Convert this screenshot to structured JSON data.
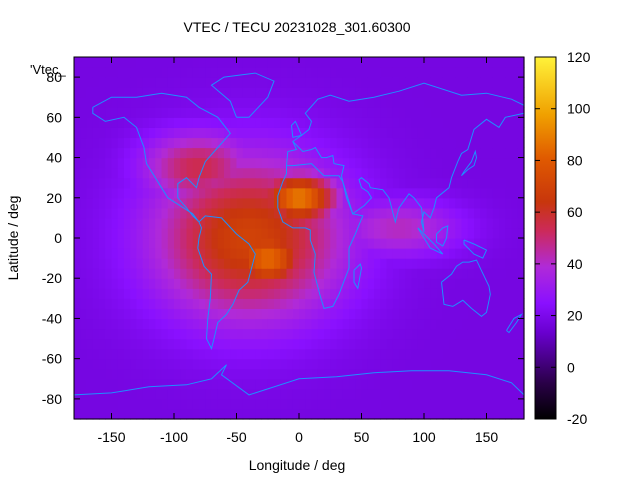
{
  "chart_data": {
    "type": "heatmap",
    "title": "VTEC / TECU 20231028_301.60300",
    "xlabel": "Longitude / deg",
    "ylabel": "Latitude / deg",
    "xlim": [
      -180,
      180
    ],
    "ylim": [
      -90,
      90
    ],
    "x_ticks": [
      "-150",
      "-100",
      "-50",
      "0",
      "50",
      "100",
      "150"
    ],
    "x_tick_values": [
      -150,
      -100,
      -50,
      0,
      50,
      100,
      150
    ],
    "y_ticks": [
      "80",
      "60",
      "40",
      "20",
      "0",
      "-20",
      "-40",
      "-60",
      "-80"
    ],
    "y_tick_values": [
      80,
      60,
      40,
      20,
      0,
      -20,
      -40,
      -60,
      -80
    ],
    "colorbar": {
      "min": -20,
      "max": 120,
      "ticks": [
        "120",
        "100",
        "80",
        "60",
        "40",
        "20",
        "0",
        "-20"
      ],
      "tick_values": [
        120,
        100,
        80,
        60,
        40,
        20,
        0,
        -20
      ],
      "palette": "black-purple-red-orange-yellow"
    },
    "legend_entry": "'Vtec_",
    "background_level": 18,
    "regions": [
      {
        "name": "main-equatorial-anomaly",
        "lon": -40,
        "lat": 0,
        "lon_halfwidth": 75,
        "lat_halfwidth": 40,
        "peak": 70
      },
      {
        "name": "north-crest",
        "lon": 0,
        "lat": 20,
        "lon_halfwidth": 30,
        "lat_halfwidth": 12,
        "peak": 90
      },
      {
        "name": "south-crest",
        "lon": -25,
        "lat": -10,
        "lon_halfwidth": 30,
        "lat_halfwidth": 15,
        "peak": 85
      },
      {
        "name": "northern-extension",
        "lon": -80,
        "lat": 35,
        "lon_halfwidth": 45,
        "lat_halfwidth": 18,
        "peak": 55
      },
      {
        "name": "indian-ocean-tail",
        "lon": 80,
        "lat": 5,
        "lon_halfwidth": 50,
        "lat_halfwidth": 14,
        "peak": 42
      }
    ]
  }
}
